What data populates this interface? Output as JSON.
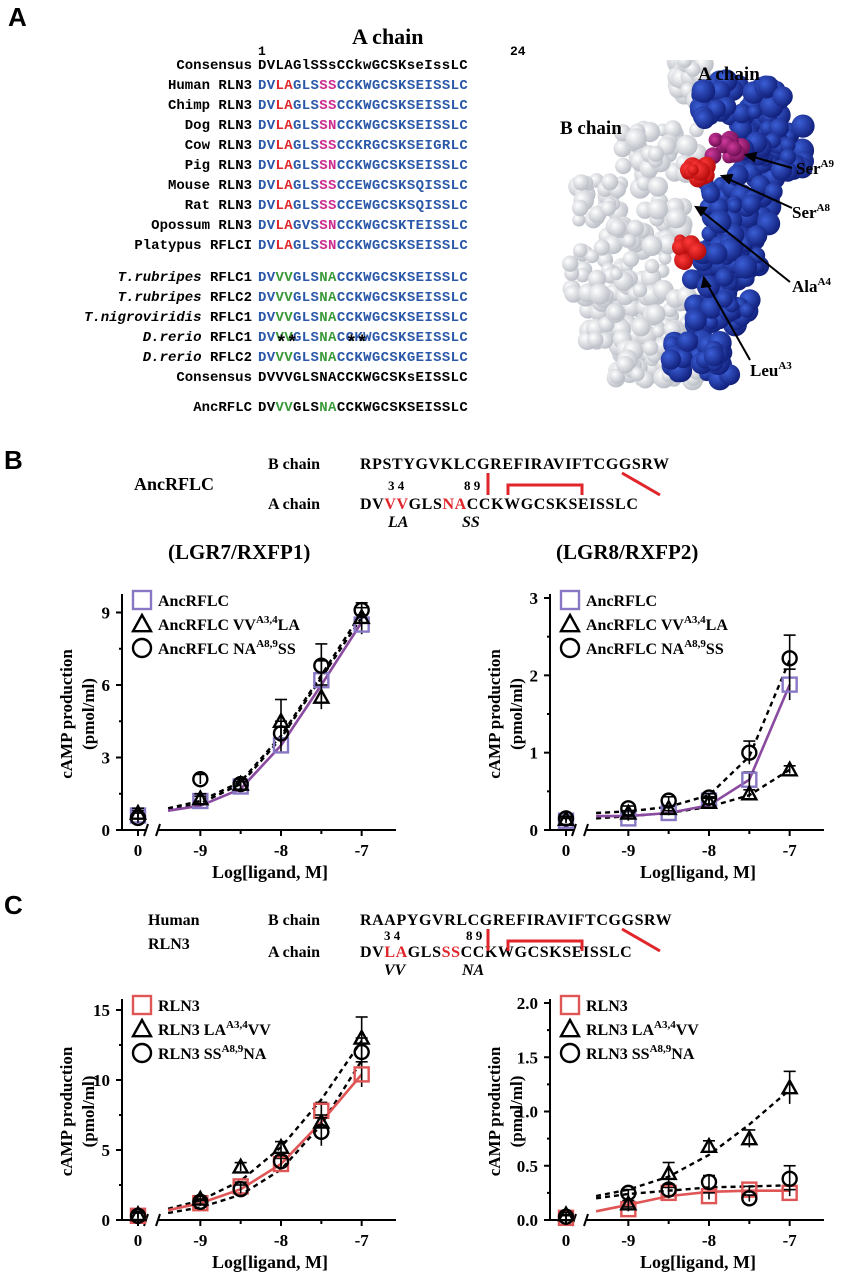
{
  "panels": {
    "a": "A",
    "b": "B",
    "c": "C"
  },
  "panel_a": {
    "title": "A chain",
    "num_start": "1",
    "num_end": "24",
    "rows": [
      {
        "label": "Consensus",
        "italic": "",
        "seq": [
          [
            "DVLAGlSSsCCkwGCSKseIssLC",
            "k"
          ]
        ]
      },
      {
        "label": "Human RLN3",
        "italic": "",
        "seq": [
          [
            "DV",
            "b"
          ],
          [
            "LA",
            "r"
          ],
          [
            "GLS",
            "b"
          ],
          [
            "SS",
            "m"
          ],
          [
            "CCKWGCSKSEISSLC",
            "b"
          ]
        ]
      },
      {
        "label": "Chimp RLN3",
        "italic": "",
        "seq": [
          [
            "DV",
            "b"
          ],
          [
            "LA",
            "r"
          ],
          [
            "GLS",
            "b"
          ],
          [
            "SS",
            "m"
          ],
          [
            "CCKWGCSKSEISSLC",
            "b"
          ]
        ]
      },
      {
        "label": "Dog RLN3",
        "italic": "",
        "seq": [
          [
            "DV",
            "b"
          ],
          [
            "LA",
            "r"
          ],
          [
            "GLS",
            "b"
          ],
          [
            "SN",
            "m"
          ],
          [
            "CCKWGCSKSEISSLC",
            "b"
          ]
        ]
      },
      {
        "label": "Cow RLN3",
        "italic": "",
        "seq": [
          [
            "DV",
            "b"
          ],
          [
            "LA",
            "r"
          ],
          [
            "GLS",
            "b"
          ],
          [
            "SS",
            "m"
          ],
          [
            "CCKRGCSKSEIGRLC",
            "b"
          ]
        ]
      },
      {
        "label": "Pig RLN3",
        "italic": "",
        "seq": [
          [
            "DV",
            "b"
          ],
          [
            "LA",
            "r"
          ],
          [
            "GLS",
            "b"
          ],
          [
            "SN",
            "m"
          ],
          [
            "CCKWGCSKSEISSLC",
            "b"
          ]
        ]
      },
      {
        "label": "Mouse RLN3",
        "italic": "",
        "seq": [
          [
            "DV",
            "b"
          ],
          [
            "LA",
            "r"
          ],
          [
            "GLS",
            "b"
          ],
          [
            "SS",
            "m"
          ],
          [
            "CCEWGCSKSQISSLC",
            "b"
          ]
        ]
      },
      {
        "label": "Rat RLN3",
        "italic": "",
        "seq": [
          [
            "DV",
            "b"
          ],
          [
            "LA",
            "r"
          ],
          [
            "GLS",
            "b"
          ],
          [
            "SS",
            "m"
          ],
          [
            "CCEWGCSKSQISSLC",
            "b"
          ]
        ]
      },
      {
        "label": "Opossum RLN3",
        "italic": "",
        "seq": [
          [
            "DV",
            "b"
          ],
          [
            "LA",
            "r"
          ],
          [
            "GVS",
            "b"
          ],
          [
            "SN",
            "m"
          ],
          [
            "CCKWGCSKTEISSLC",
            "b"
          ]
        ]
      },
      {
        "label": "Platypus RFLCI",
        "italic": "",
        "seq": [
          [
            "DV",
            "b"
          ],
          [
            "LA",
            "r"
          ],
          [
            "GLS",
            "b"
          ],
          [
            "SN",
            "m"
          ],
          [
            "CCKWGCSKSEISSLC",
            "b"
          ]
        ]
      },
      {
        "label": " RFLC1",
        "italic": "T.rubripes",
        "seq": [
          [
            "DV",
            "b"
          ],
          [
            "VV",
            "g"
          ],
          [
            "GLS",
            "b"
          ],
          [
            "NA",
            "g"
          ],
          [
            "CCKWGCSKSEISSLC",
            "b"
          ]
        ]
      },
      {
        "label": " RFLC2",
        "italic": "T.rubripes",
        "seq": [
          [
            "DV",
            "b"
          ],
          [
            "VV",
            "g"
          ],
          [
            "GLS",
            "b"
          ],
          [
            "NA",
            "g"
          ],
          [
            "CCKWGCSKSEISSLC",
            "b"
          ]
        ]
      },
      {
        "label": " RFLC1",
        "italic": "T.nigroviridis",
        "seq": [
          [
            "DV",
            "b"
          ],
          [
            "VV",
            "g"
          ],
          [
            "GLS",
            "b"
          ],
          [
            "NA",
            "g"
          ],
          [
            "CCKWGCSKSEISSLC",
            "b"
          ]
        ]
      },
      {
        "label": " RFLC1",
        "italic": "D.rerio",
        "seq": [
          [
            "DV",
            "b"
          ],
          [
            "VV",
            "g"
          ],
          [
            "GLS",
            "b"
          ],
          [
            "NA",
            "g"
          ],
          [
            "CCKWGCSKSEISSLC",
            "b"
          ]
        ]
      },
      {
        "label": " RFLC2",
        "italic": "D.rerio",
        "seq": [
          [
            "DV",
            "b"
          ],
          [
            "VV",
            "g"
          ],
          [
            "GLS",
            "b"
          ],
          [
            "NA",
            "g"
          ],
          [
            "CCKWGCSKGEISSLC",
            "b"
          ]
        ]
      },
      {
        "label": "Consensus",
        "italic": "",
        "seq": [
          [
            "DVVVGLSNACCKWGCSKsEISSLC",
            "k"
          ]
        ]
      }
    ],
    "stars1": "**",
    "stars2": "**",
    "anc_label": "AncRFLC",
    "anc_seq": [
      [
        "DV",
        "k"
      ],
      [
        "VV",
        "g"
      ],
      [
        "GLS",
        "k"
      ],
      [
        "NA",
        "g"
      ],
      [
        "CCKWGCSKSEISSLC",
        "k"
      ]
    ],
    "struct_labels": {
      "a_chain": "A chain",
      "b_chain": "B chain",
      "ser9": "Ser",
      "ser9_sup": "A9",
      "ser8": "Ser",
      "ser8_sup": "A8",
      "ala4": "Ala",
      "ala4_sup": "A4",
      "leu3": "Leu",
      "leu3_sup": "A3"
    },
    "colors": {
      "blue": "#2a57a8",
      "red": "#e0262b",
      "magenta": "#cc2a8f",
      "green": "#3a9a3a"
    }
  },
  "panel_b": {
    "name": "AncRFLC",
    "b_chain_label": "B chain",
    "b_chain_seq": "RPSTYGVKLCGREFIRAVIFTCGGSRW",
    "a_chain_label": "A chain",
    "a_seq_1": "DV",
    "a_seq_mut1": "VV",
    "a_seq_2": "GLS",
    "a_seq_mut2": "NA",
    "a_seq_3": "CCKWGCSKSEISSLC",
    "pos34": "3 4",
    "pos89": "8 9",
    "sub1": "LA",
    "sub2": "SS",
    "chart_titles": [
      "(LGR7/RXFP1)",
      "(LGR8/RXFP2)"
    ]
  },
  "panel_c": {
    "name_1": "Human",
    "name_2": "RLN3",
    "b_chain_label": "B chain",
    "b_chain_seq": "RAAPYGVRLCGREFIRAVIFTCGGSRW",
    "a_chain_label": "A chain",
    "a_seq_1": "DV",
    "a_seq_mut1": "LA",
    "a_seq_2": "GLS",
    "a_seq_mut2": "SS",
    "a_seq_3": "CCKWGCSKSEISSLC",
    "pos34": "3 4",
    "pos89": "8 9",
    "sub1": "VV",
    "sub2": "NA"
  },
  "chart_data": [
    {
      "type": "line",
      "title": "(LGR7/RXFP1)",
      "xlabel": "Log[ligand, M]",
      "ylabel": "cAMP production (pmol/ml)",
      "ylim": [
        0,
        9.6
      ],
      "yticks": [
        "0",
        "3",
        "6",
        "9"
      ],
      "xticks": [
        "0",
        "-9",
        "-8",
        "-7"
      ],
      "legend_position": "top-left",
      "series": [
        {
          "name": "AncRFLC",
          "sup": "",
          "suffix": "",
          "marker": "square",
          "color": "#8877c4",
          "x": [
            0,
            -9,
            -8.5,
            -8,
            -7.5,
            -7
          ],
          "y": [
            0.6,
            1.2,
            1.8,
            3.5,
            6.2,
            8.5
          ],
          "err": [
            0.2,
            0.2,
            0.2,
            0.3,
            0.8,
            0.4
          ]
        },
        {
          "name": "AncRFLC VV",
          "sup": "A3,4",
          "suffix": "LA",
          "marker": "triangle",
          "color": "#000000",
          "x": [
            0,
            -9,
            -8.5,
            -8,
            -7.5,
            -7
          ],
          "y": [
            0.7,
            1.3,
            1.9,
            4.5,
            5.5,
            8.8
          ],
          "err": [
            0.2,
            0.2,
            0.2,
            0.9,
            0.5,
            0.4
          ]
        },
        {
          "name": "AncRFLC NA",
          "sup": "A8,9",
          "suffix": "SS",
          "marker": "circle",
          "color": "#000000",
          "x": [
            0,
            -9,
            -8.5,
            -8,
            -7.5,
            -7
          ],
          "y": [
            0.5,
            2.1,
            1.9,
            4.0,
            6.8,
            9.1
          ],
          "err": [
            0.2,
            0.2,
            0.2,
            0.5,
            0.9,
            0.3
          ]
        }
      ]
    },
    {
      "type": "line",
      "title": "(LGR8/RXFP2)",
      "xlabel": "Log[ligand, M]",
      "ylabel": "cAMP production (pmol/ml)",
      "ylim": [
        0,
        3
      ],
      "yticks": [
        "0",
        "1",
        "2",
        "3"
      ],
      "xticks": [
        "0",
        "-9",
        "-8",
        "-7"
      ],
      "legend_position": "top-left",
      "series": [
        {
          "name": "AncRFLC",
          "sup": "",
          "suffix": "",
          "marker": "square",
          "color": "#8877c4",
          "x": [
            0,
            -9,
            -8.5,
            -8,
            -7.5,
            -7
          ],
          "y": [
            0.12,
            0.15,
            0.22,
            0.38,
            0.65,
            1.88
          ],
          "err": [
            0.03,
            0.03,
            0.03,
            0.05,
            0.1,
            0.2
          ]
        },
        {
          "name": "AncRFLC VV",
          "sup": "A3,4",
          "suffix": "LA",
          "marker": "triangle",
          "color": "#000000",
          "x": [
            0,
            -9,
            -8.5,
            -8,
            -7.5,
            -7
          ],
          "y": [
            0.14,
            0.22,
            0.28,
            0.36,
            0.47,
            0.78
          ],
          "err": [
            0.03,
            0.03,
            0.03,
            0.05,
            0.05,
            0.05
          ]
        },
        {
          "name": "AncRFLC NA",
          "sup": "A8,9",
          "suffix": "SS",
          "marker": "circle",
          "color": "#000000",
          "x": [
            0,
            -9,
            -8.5,
            -8,
            -7.5,
            -7
          ],
          "y": [
            0.15,
            0.28,
            0.38,
            0.42,
            1.0,
            2.22
          ],
          "err": [
            0.03,
            0.03,
            0.05,
            0.05,
            0.15,
            0.3
          ]
        }
      ]
    },
    {
      "type": "line",
      "title": "",
      "xlabel": "Log[ligand, M]",
      "ylabel": "cAMP production (pmol/ml)",
      "ylim": [
        0,
        15.5
      ],
      "yticks": [
        "0",
        "5",
        "10",
        "15"
      ],
      "xticks": [
        "0",
        "-9",
        "-8",
        "-7"
      ],
      "legend_position": "top-left",
      "series": [
        {
          "name": "RLN3",
          "sup": "",
          "suffix": "",
          "marker": "square",
          "color": "#e05555",
          "x": [
            0,
            -9,
            -8.5,
            -8,
            -7.5,
            -7
          ],
          "y": [
            0.3,
            1.2,
            2.4,
            4.0,
            7.8,
            10.4
          ],
          "err": [
            0.2,
            0.2,
            0.3,
            0.4,
            0.6,
            0.9
          ]
        },
        {
          "name": "RLN3 LA",
          "sup": "A3,4",
          "suffix": "VV",
          "marker": "triangle",
          "color": "#000000",
          "x": [
            0,
            -9,
            -8.5,
            -8,
            -7.5,
            -7
          ],
          "y": [
            0.4,
            1.5,
            3.8,
            5.2,
            7.0,
            13.0
          ],
          "err": [
            0.2,
            0.2,
            0.3,
            0.4,
            0.5,
            1.5
          ]
        },
        {
          "name": "RLN3 SS",
          "sup": "A8,9",
          "suffix": "NA",
          "marker": "circle",
          "color": "#000000",
          "x": [
            0,
            -9,
            -8.5,
            -8,
            -7.5,
            -7
          ],
          "y": [
            0.3,
            1.3,
            2.2,
            4.2,
            6.3,
            12.0
          ],
          "err": [
            0.2,
            0.2,
            0.3,
            0.4,
            1.0,
            1.0
          ]
        }
      ]
    },
    {
      "type": "line",
      "title": "",
      "xlabel": "Log[ligand, M]",
      "ylabel": "cAMP production (pmol/ml)",
      "ylim": [
        0,
        2.0
      ],
      "yticks": [
        "0.0",
        "0.5",
        "1.0",
        "1.5",
        "2.0"
      ],
      "xticks": [
        "0",
        "-9",
        "-8",
        "-7"
      ],
      "legend_position": "top-left",
      "series": [
        {
          "name": "RLN3",
          "sup": "",
          "suffix": "",
          "marker": "square",
          "color": "#e05555",
          "x": [
            0,
            -9,
            -8.5,
            -8,
            -7.5,
            -7
          ],
          "y": [
            0.02,
            0.1,
            0.25,
            0.22,
            0.28,
            0.25
          ],
          "err": [
            0.02,
            0.02,
            0.05,
            0.03,
            0.03,
            0.03
          ]
        },
        {
          "name": "RLN3 LA",
          "sup": "A3,4",
          "suffix": "VV",
          "marker": "triangle",
          "color": "#000000",
          "x": [
            0,
            -9,
            -8.5,
            -8,
            -7.5,
            -7
          ],
          "y": [
            0.05,
            0.15,
            0.43,
            0.68,
            0.75,
            1.22
          ],
          "err": [
            0.02,
            0.03,
            0.1,
            0.05,
            0.08,
            0.15
          ]
        },
        {
          "name": "RLN3 SS",
          "sup": "A8,9",
          "suffix": "NA",
          "marker": "circle",
          "color": "#000000",
          "x": [
            0,
            -9,
            -8.5,
            -8,
            -7.5,
            -7
          ],
          "y": [
            0.03,
            0.25,
            0.28,
            0.35,
            0.2,
            0.38
          ],
          "err": [
            0.02,
            0.03,
            0.05,
            0.06,
            0.03,
            0.12
          ]
        }
      ]
    }
  ]
}
